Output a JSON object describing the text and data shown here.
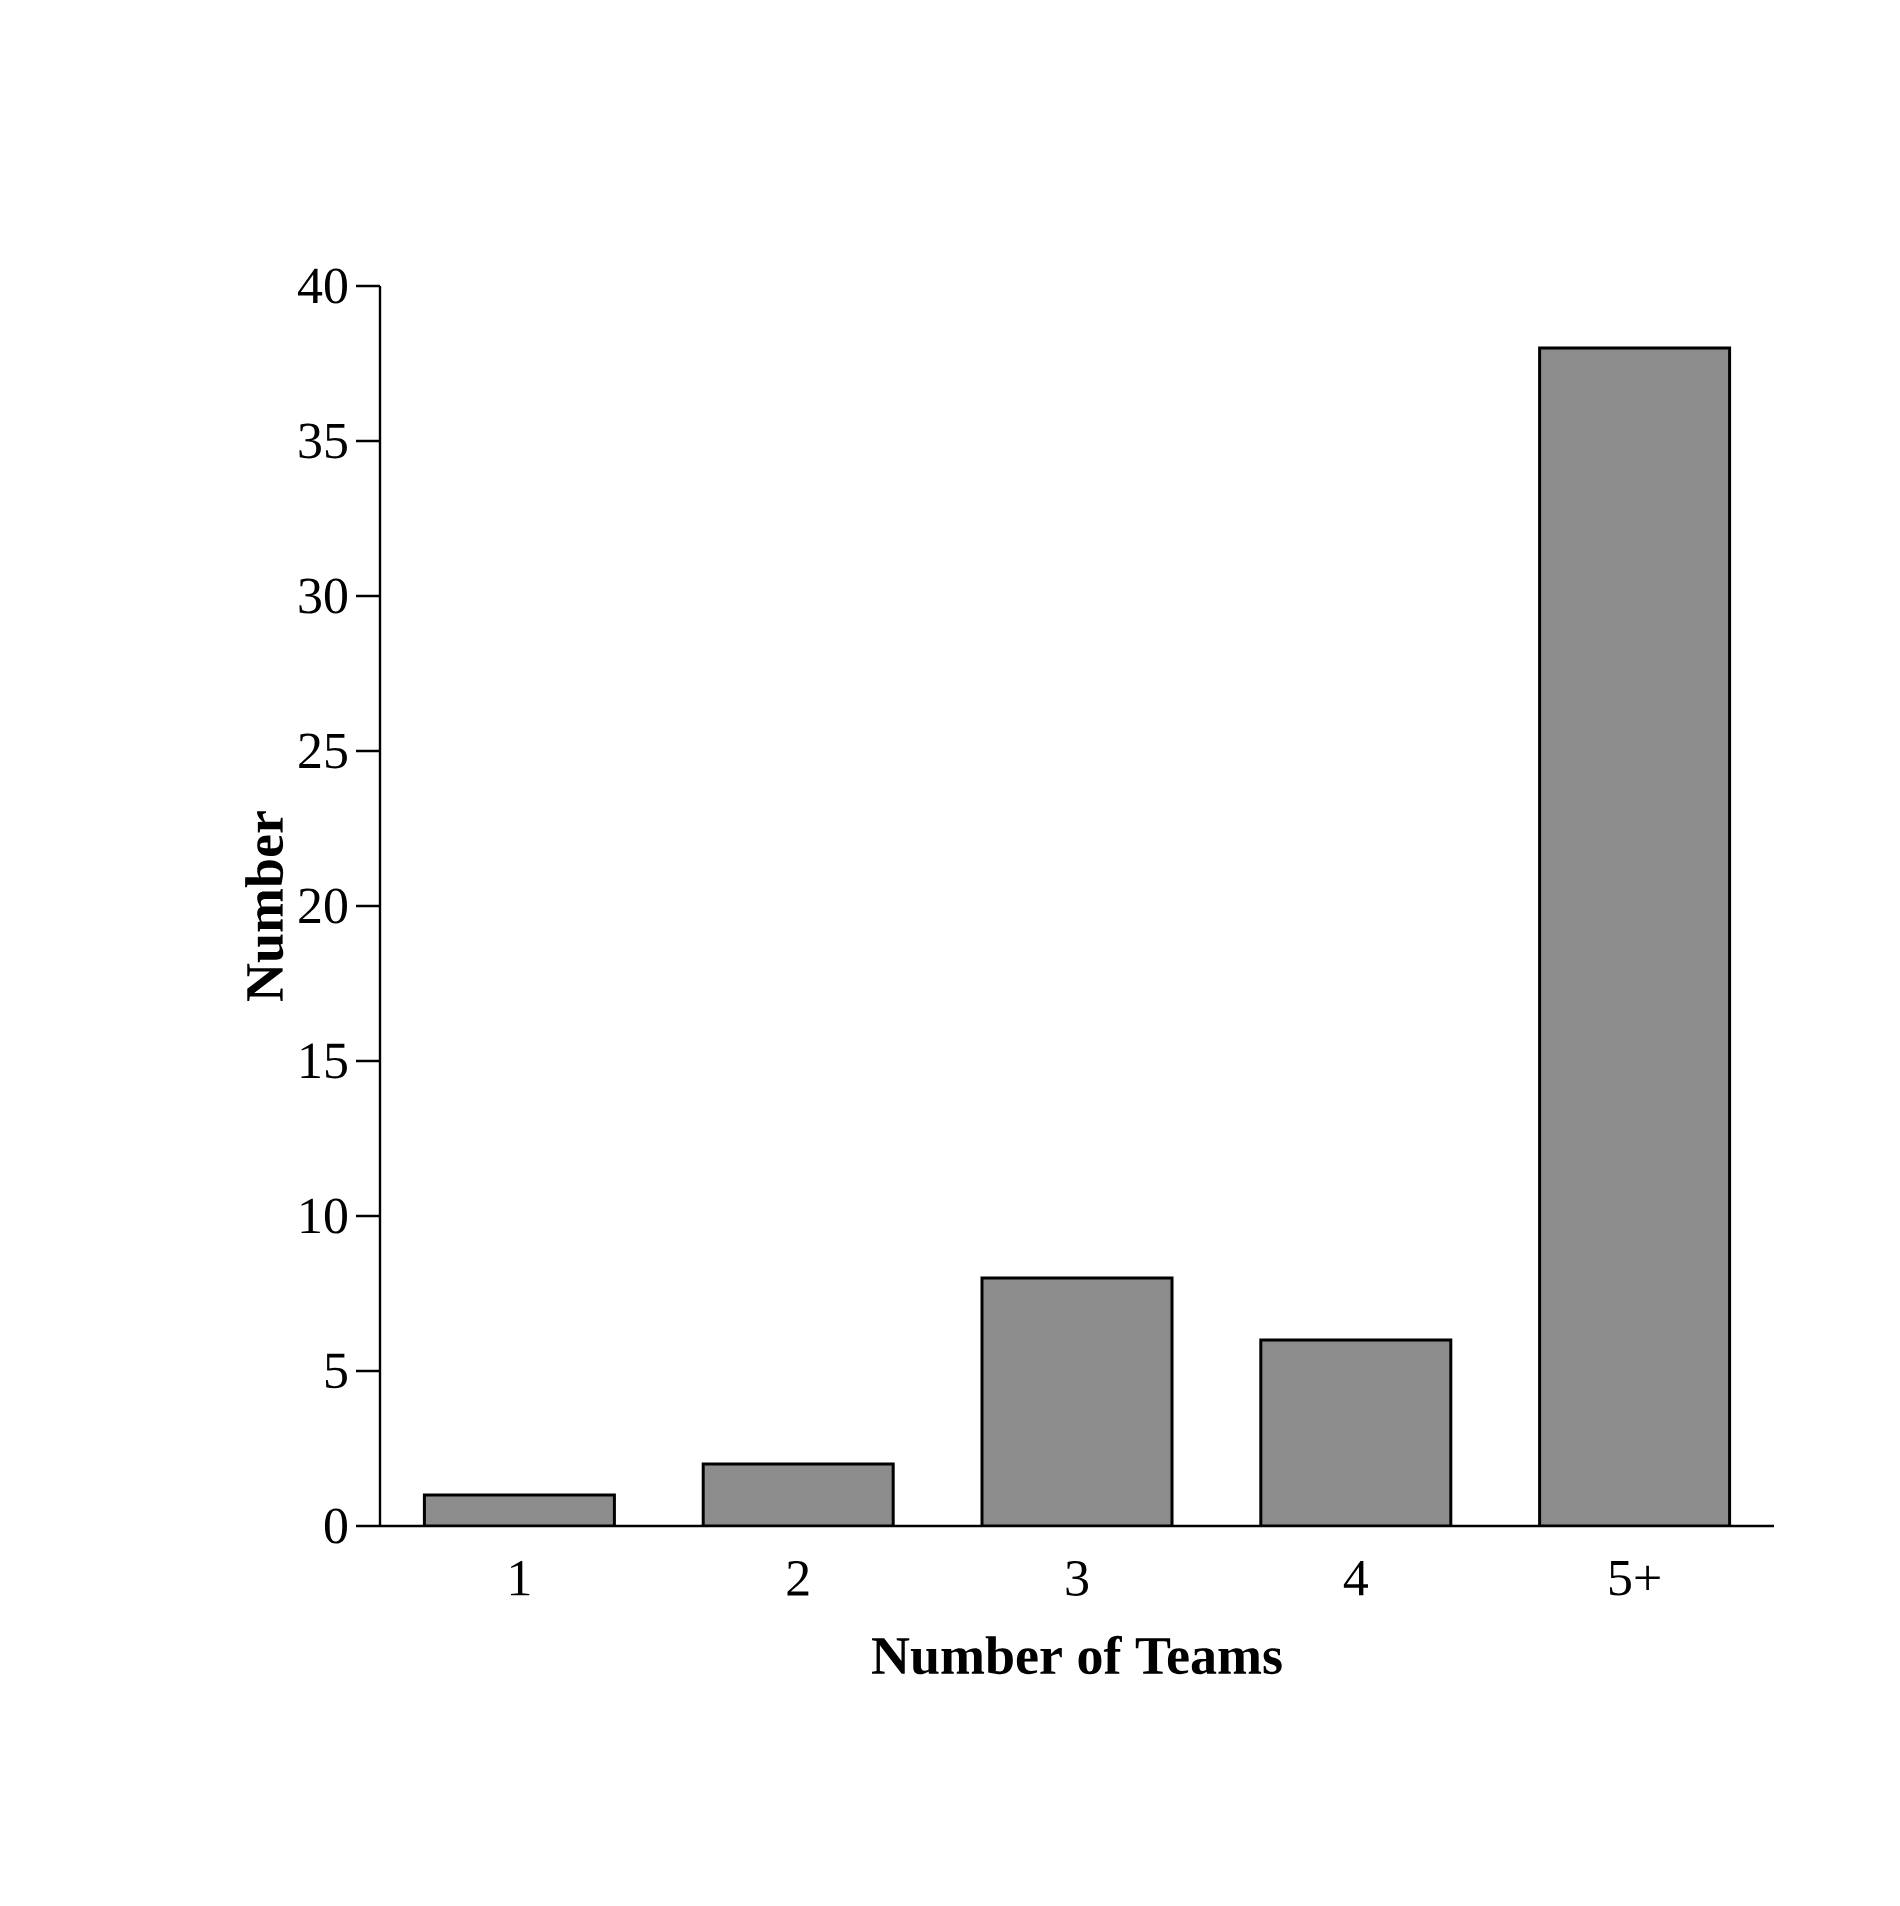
{
  "chart_data": {
    "type": "bar",
    "xlabel": "Number of Teams",
    "ylabel": "Number",
    "categories": [
      "1",
      "2",
      "3",
      "4",
      "5+"
    ],
    "values": [
      1,
      2,
      8,
      6,
      38
    ],
    "color": "#8c8c8c",
    "ylim": [
      0,
      40
    ],
    "yticks": [
      0,
      5,
      10,
      15,
      20,
      25,
      30,
      35,
      40
    ],
    "grid": false
  }
}
